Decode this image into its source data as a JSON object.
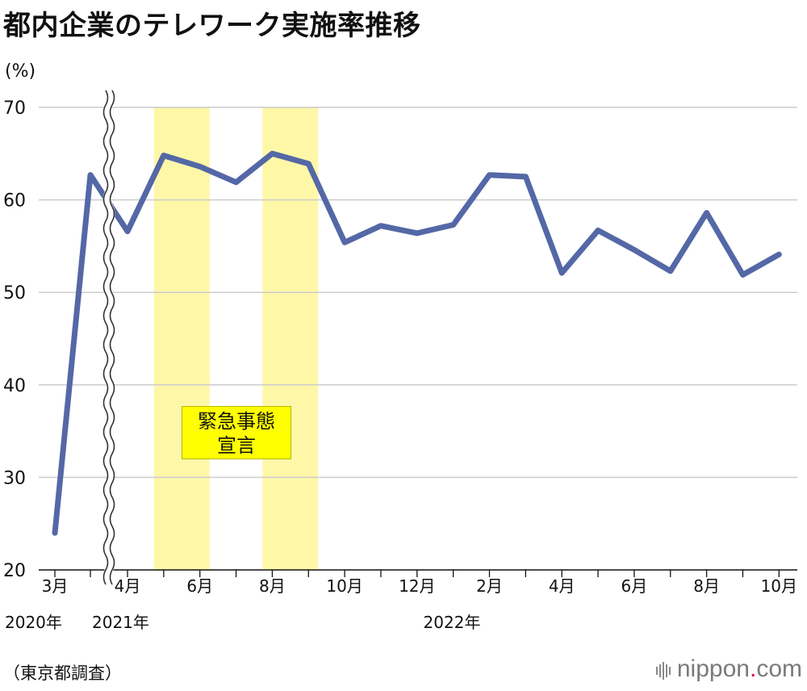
{
  "title": "都内企業のテレワーク実施率推移",
  "source": "（東京都調査）",
  "brand": {
    "name": "nippon",
    "dot": ".",
    "tld": "com"
  },
  "colors": {
    "line": "#5468a6",
    "band": "#fff7a8",
    "annotation_bg": "#ffff00",
    "grid": "#cccccc"
  },
  "chart_data": {
    "type": "line",
    "title": "都内企業のテレワーク実施率推移",
    "ylabel": "(%)",
    "ylim": [
      20,
      70
    ],
    "yticks": [
      20,
      30,
      40,
      50,
      60,
      70
    ],
    "grid": true,
    "axis_break_after": "2020-04",
    "x_tick_labels": [
      "3月",
      "4月",
      "6月",
      "8月",
      "10月",
      "12月",
      "2月",
      "4月",
      "6月",
      "8月",
      "10月"
    ],
    "year_labels": [
      "2020年",
      "2021年",
      "2022年"
    ],
    "points": [
      {
        "x": "2020-03",
        "y": 24.0
      },
      {
        "x": "2020-04",
        "y": 62.7
      },
      {
        "x": "2021-04",
        "y": 56.6
      },
      {
        "x": "2021-05",
        "y": 64.8
      },
      {
        "x": "2021-06",
        "y": 63.6
      },
      {
        "x": "2021-07",
        "y": 61.9
      },
      {
        "x": "2021-08",
        "y": 65.0
      },
      {
        "x": "2021-09",
        "y": 63.9
      },
      {
        "x": "2021-10",
        "y": 55.4
      },
      {
        "x": "2021-11",
        "y": 57.2
      },
      {
        "x": "2021-12",
        "y": 56.4
      },
      {
        "x": "2022-01",
        "y": 57.3
      },
      {
        "x": "2022-02",
        "y": 62.7
      },
      {
        "x": "2022-03",
        "y": 62.5
      },
      {
        "x": "2022-04",
        "y": 52.1
      },
      {
        "x": "2022-05",
        "y": 56.7
      },
      {
        "x": "2022-06",
        "y": 54.6
      },
      {
        "x": "2022-07",
        "y": 52.3
      },
      {
        "x": "2022-08",
        "y": 58.6
      },
      {
        "x": "2022-09",
        "y": 51.9
      },
      {
        "x": "2022-10",
        "y": 54.1
      }
    ],
    "shaded_periods": [
      {
        "from": "2021-05",
        "to": "2021-06"
      },
      {
        "from": "2021-08",
        "to": "2021-09"
      }
    ],
    "annotations": [
      {
        "lines": [
          "緊急事態",
          "宣言"
        ]
      }
    ]
  }
}
